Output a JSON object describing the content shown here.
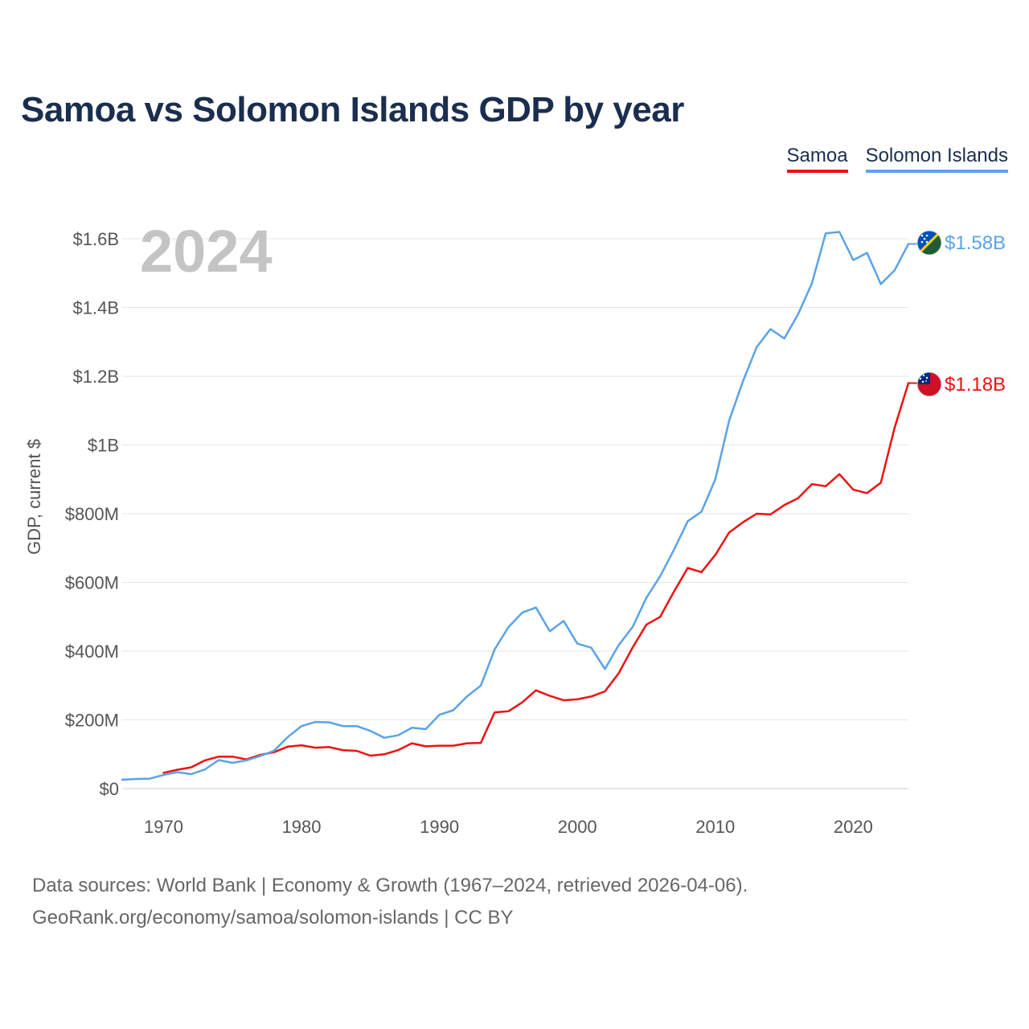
{
  "title": "Samoa vs Solomon Islands GDP by year",
  "legend": {
    "samoa": "Samoa",
    "solomon": "Solomon Islands"
  },
  "footer": {
    "line1": "Data sources: World Bank | Economy & Growth (1967–2024, retrieved 2026-04-06).",
    "line2": "GeoRank.org/economy/samoa/solomon-islands | CC BY"
  },
  "chart_data": {
    "type": "line",
    "title": "Samoa vs Solomon Islands GDP by year",
    "year_label": "2024",
    "ylabel": "GDP, current $",
    "xlim": [
      1967,
      2024
    ],
    "ylim": [
      0,
      1600000000
    ],
    "x_ticks": [
      1970,
      1980,
      1990,
      2000,
      2010,
      2020
    ],
    "x_tick_labels": [
      "1970",
      "1980",
      "1990",
      "2000",
      "2010",
      "2020"
    ],
    "y_ticks": [
      0,
      200000000,
      400000000,
      600000000,
      800000000,
      1000000000,
      1200000000,
      1400000000,
      1600000000
    ],
    "y_tick_labels": [
      "$0",
      "$200M",
      "$400M",
      "$600M",
      "$800M",
      "$1B",
      "$1.2B",
      "$1.4B",
      "$1.6B"
    ],
    "series": [
      {
        "name": "Samoa",
        "color": "#ee1111",
        "end_label": "$1.18B",
        "x": [
          1970,
          1971,
          1972,
          1973,
          1974,
          1975,
          1976,
          1977,
          1978,
          1979,
          1980,
          1981,
          1982,
          1983,
          1984,
          1985,
          1986,
          1987,
          1988,
          1989,
          1990,
          1991,
          1992,
          1993,
          1994,
          1995,
          1996,
          1997,
          1998,
          1999,
          2000,
          2001,
          2002,
          2003,
          2004,
          2005,
          2006,
          2007,
          2008,
          2009,
          2010,
          2011,
          2012,
          2013,
          2014,
          2015,
          2016,
          2017,
          2018,
          2019,
          2020,
          2021,
          2022,
          2023,
          2024
        ],
        "values": [
          46000000,
          55000000,
          62000000,
          82000000,
          93000000,
          93000000,
          85000000,
          98000000,
          106000000,
          122000000,
          126000000,
          119000000,
          121000000,
          112000000,
          110000000,
          96000000,
          100000000,
          112000000,
          132000000,
          123000000,
          125000000,
          125000000,
          132000000,
          133000000,
          222000000,
          225000000,
          251000000,
          286000000,
          270000000,
          257000000,
          260000000,
          268000000,
          283000000,
          336000000,
          410000000,
          477000000,
          500000000,
          573000000,
          642000000,
          630000000,
          680000000,
          745000000,
          775000000,
          800000000,
          798000000,
          825000000,
          845000000,
          886000000,
          880000000,
          915000000,
          870000000,
          860000000,
          890000000,
          1050000000,
          1180000000
        ]
      },
      {
        "name": "Solomon Islands",
        "color": "#5aa3e6",
        "end_label": "$1.58B",
        "x": [
          1967,
          1968,
          1969,
          1970,
          1971,
          1972,
          1973,
          1974,
          1975,
          1976,
          1977,
          1978,
          1979,
          1980,
          1981,
          1982,
          1983,
          1984,
          1985,
          1986,
          1987,
          1988,
          1989,
          1990,
          1991,
          1992,
          1993,
          1994,
          1995,
          1996,
          1997,
          1998,
          1999,
          2000,
          2001,
          2002,
          2003,
          2004,
          2005,
          2006,
          2007,
          2008,
          2009,
          2010,
          2011,
          2012,
          2013,
          2014,
          2015,
          2016,
          2017,
          2018,
          2019,
          2020,
          2021,
          2022,
          2023,
          2024
        ],
        "values": [
          26000000,
          28000000,
          29000000,
          40000000,
          48000000,
          42000000,
          56000000,
          83000000,
          75000000,
          82000000,
          95000000,
          110000000,
          150000000,
          182000000,
          194000000,
          193000000,
          182000000,
          182000000,
          168000000,
          148000000,
          155000000,
          177000000,
          173000000,
          215000000,
          228000000,
          268000000,
          300000000,
          405000000,
          470000000,
          512000000,
          527000000,
          458000000,
          488000000,
          422000000,
          410000000,
          348000000,
          418000000,
          470000000,
          555000000,
          618000000,
          695000000,
          778000000,
          806000000,
          900000000,
          1070000000,
          1185000000,
          1285000000,
          1337000000,
          1310000000,
          1380000000,
          1470000000,
          1616000000,
          1620000000,
          1538000000,
          1559000000,
          1468000000,
          1508000000,
          1585000000
        ]
      }
    ]
  }
}
